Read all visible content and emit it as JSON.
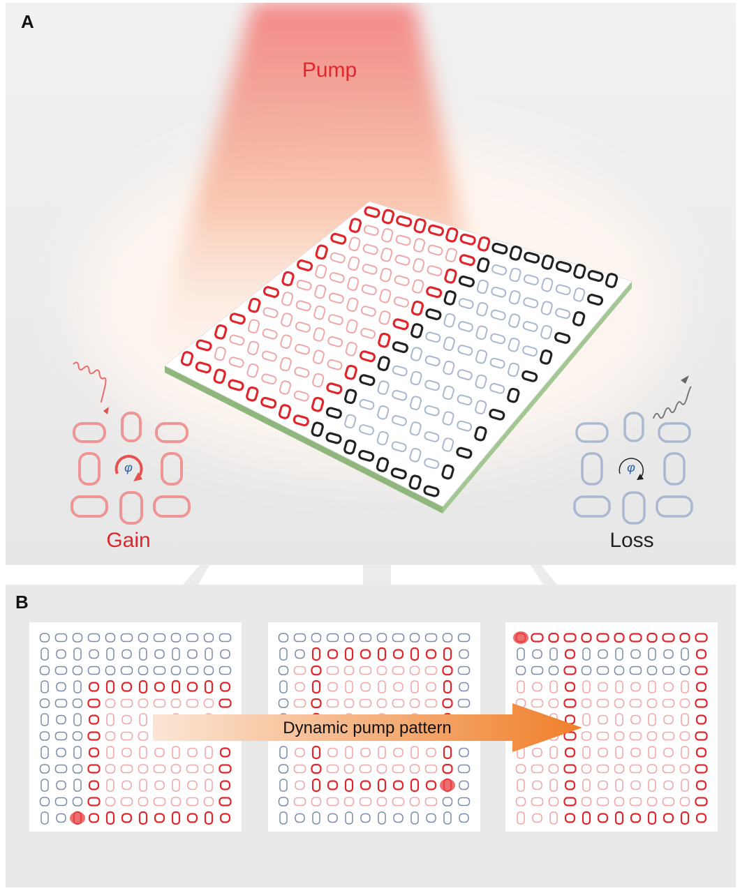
{
  "panel_a": {
    "letter": "A",
    "pump_label": "Pump",
    "gain_label": "Gain",
    "loss_label": "Loss",
    "phase_symbol": "φ"
  },
  "panel_b": {
    "letter": "B",
    "arrow_label": "Dynamic pump pattern"
  },
  "colors": {
    "gain_red": "#e0262b",
    "gain_light": "#f1a7a8",
    "loss_blue": "#a9b7cf",
    "loss_dark": "#222222",
    "pump": "#f07f7f",
    "substrate_edge": "#93b881",
    "arrow": "#ef8a3a",
    "phase_blue": "#1f5fb0"
  }
}
